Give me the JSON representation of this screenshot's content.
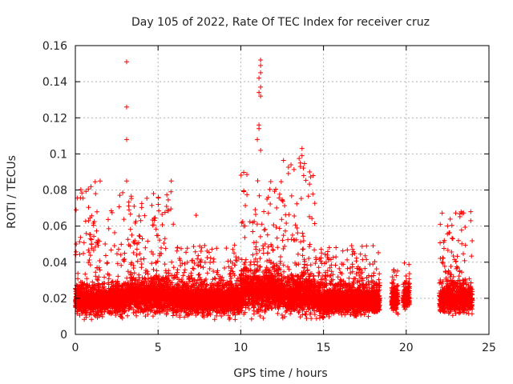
{
  "chart_data": {
    "type": "scatter",
    "title": "Day 105 of 2022, Rate Of TEC Index for receiver cruz",
    "xlabel": "GPS time / hours",
    "ylabel": "ROTI / TECUs",
    "xlim": [
      0,
      25
    ],
    "ylim": [
      0,
      0.16
    ],
    "xticks": [
      "0",
      "5",
      "10",
      "15",
      "20",
      "25"
    ],
    "yticks": [
      "0",
      "0.02",
      "0.04",
      "0.06",
      "0.08",
      "0.1",
      "0.12",
      "0.14",
      "0.16"
    ],
    "grid": true,
    "marker": "plus",
    "color": "#ff0000",
    "density_segments": [
      {
        "x0": 0.0,
        "x1": 3.0,
        "base": 0.019,
        "spread": 0.008,
        "outlier_max": 0.085
      },
      {
        "x0": 3.0,
        "x1": 6.0,
        "base": 0.021,
        "spread": 0.009,
        "outlier_max": 0.08
      },
      {
        "x0": 6.0,
        "x1": 10.0,
        "base": 0.019,
        "spread": 0.008,
        "outlier_max": 0.05
      },
      {
        "x0": 10.0,
        "x1": 12.5,
        "base": 0.024,
        "spread": 0.011,
        "outlier_max": 0.09
      },
      {
        "x0": 12.5,
        "x1": 14.5,
        "base": 0.022,
        "spread": 0.01,
        "outlier_max": 0.1
      },
      {
        "x0": 14.5,
        "x1": 18.4,
        "base": 0.019,
        "spread": 0.008,
        "outlier_max": 0.05
      },
      {
        "x0": 19.1,
        "x1": 19.5,
        "base": 0.019,
        "spread": 0.006,
        "outlier_max": 0.04
      },
      {
        "x0": 19.8,
        "x1": 20.2,
        "base": 0.02,
        "spread": 0.006,
        "outlier_max": 0.04
      },
      {
        "x0": 22.0,
        "x1": 24.0,
        "base": 0.02,
        "spread": 0.008,
        "outlier_max": 0.068
      }
    ],
    "highlight_points": [
      {
        "x": 3.1,
        "y": 0.151
      },
      {
        "x": 3.1,
        "y": 0.126
      },
      {
        "x": 3.1,
        "y": 0.108
      },
      {
        "x": 3.1,
        "y": 0.085
      },
      {
        "x": 11.2,
        "y": 0.152
      },
      {
        "x": 11.2,
        "y": 0.149
      },
      {
        "x": 11.2,
        "y": 0.145
      },
      {
        "x": 11.1,
        "y": 0.142
      },
      {
        "x": 11.2,
        "y": 0.137
      },
      {
        "x": 11.1,
        "y": 0.134
      },
      {
        "x": 11.2,
        "y": 0.132
      },
      {
        "x": 11.1,
        "y": 0.116
      },
      {
        "x": 11.1,
        "y": 0.114
      },
      {
        "x": 11.0,
        "y": 0.108
      },
      {
        "x": 11.2,
        "y": 0.102
      },
      {
        "x": 13.7,
        "y": 0.103
      },
      {
        "x": 13.7,
        "y": 0.099
      },
      {
        "x": 13.6,
        "y": 0.095
      },
      {
        "x": 13.6,
        "y": 0.093
      },
      {
        "x": 13.8,
        "y": 0.088
      },
      {
        "x": 1.5,
        "y": 0.085
      },
      {
        "x": 5.8,
        "y": 0.085
      },
      {
        "x": 7.3,
        "y": 0.066
      },
      {
        "x": 23.9,
        "y": 0.068
      },
      {
        "x": 23.9,
        "y": 0.063
      },
      {
        "x": 22.3,
        "y": 0.052
      },
      {
        "x": 17.6,
        "y": 0.049
      }
    ]
  }
}
